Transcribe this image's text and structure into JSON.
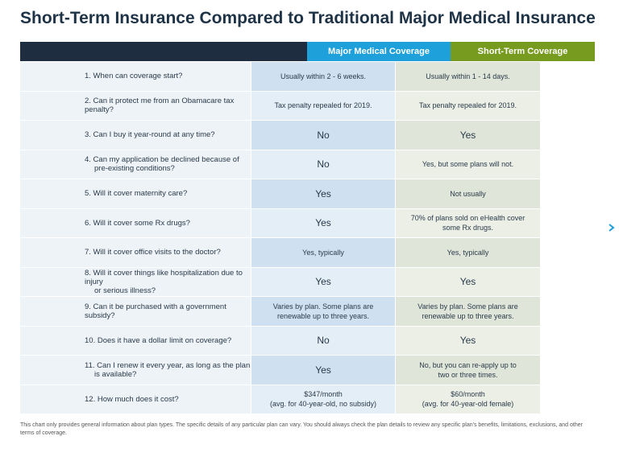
{
  "header": {
    "title": "Short-Term Insurance Compared to Traditional Major Medical Insurance"
  },
  "table": {
    "columns": [
      "Major Medical Coverage",
      "Short-Term Coverage"
    ],
    "rows": [
      [
        [
          "1. When can coverage start?"
        ],
        [
          "Usually within 2 - 6 weeks."
        ],
        [
          "Usually within 1 - 14 days."
        ]
      ],
      [
        [
          "2. Can it protect me from an Obamacare tax penalty?"
        ],
        [
          "Tax penalty repealed for 2019."
        ],
        [
          "Tax penalty repealed for 2019."
        ]
      ],
      [
        [
          "3. Can I buy it year-round at any time?"
        ],
        [
          "No"
        ],
        [
          "Yes"
        ]
      ],
      [
        [
          "4. Can my application be declined because of",
          "pre-existing conditions?"
        ],
        [
          "No"
        ],
        [
          "Yes, but some plans will not."
        ]
      ],
      [
        [
          "5. Will it cover maternity care?"
        ],
        [
          "Yes"
        ],
        [
          "Not usually"
        ]
      ],
      [
        [
          "6. Will it cover some Rx drugs?"
        ],
        [
          "Yes"
        ],
        [
          "70% of plans sold on eHealth cover",
          "some Rx drugs."
        ]
      ],
      [
        [
          "7. Will it cover office visits to the doctor?"
        ],
        [
          "Yes, typically"
        ],
        [
          "Yes, typically"
        ]
      ],
      [
        [
          "8. Will it cover things like hospitalization due to injury",
          "or serious illness?"
        ],
        [
          "Yes"
        ],
        [
          "Yes"
        ]
      ],
      [
        [
          "9. Can it be purchased with a government subsidy?"
        ],
        [
          "Varies by plan. Some plans are",
          "renewable up to three years."
        ],
        [
          "Varies by plan. Some plans are",
          "renewable up to three years."
        ]
      ],
      [
        [
          "10. Does it have a dollar limit on coverage?"
        ],
        [
          "No"
        ],
        [
          "Yes"
        ]
      ],
      [
        [
          "11. Can I renew it every year, as long as the plan",
          "is available?"
        ],
        [
          "Yes"
        ],
        [
          "No, but you can re-apply up to",
          "two or three times."
        ]
      ],
      [
        [
          "12. How much does it cost?"
        ],
        [
          "$347/month",
          "(avg. for 40-year-old, no subsidy)"
        ],
        [
          "$60/month",
          "(avg. for 40-year-old female)"
        ]
      ]
    ]
  },
  "footnote": "This chart only provides general information about plan types. The specific details of any particular plan can vary. You should always check the plan details to review any specific plan's benefits, limitations, exclusions, and other terms of coverage."
}
